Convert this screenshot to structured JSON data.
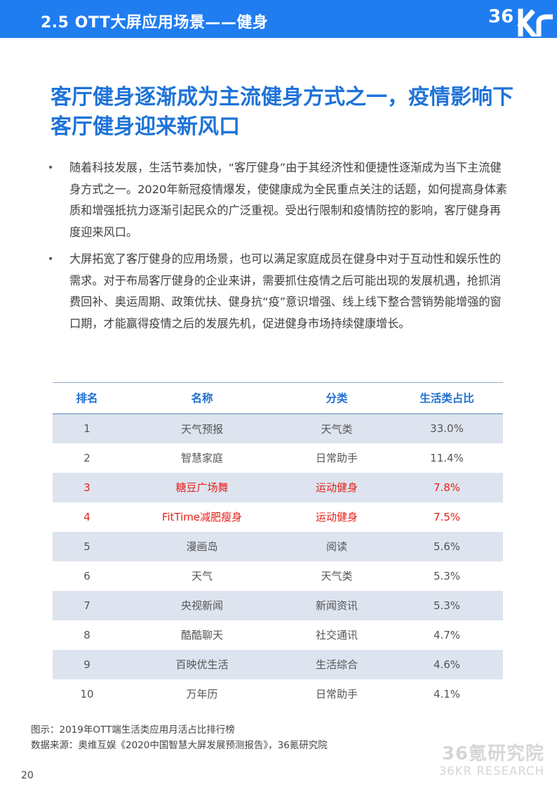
{
  "header": {
    "title": "2.5 OTT大屏应用场景——健身",
    "logo_text": "36Kr",
    "bar_color": "#1f7df0"
  },
  "headline": "客厅健身逐渐成为主流健身方式之一，疫情影响下客厅健身迎来新风口",
  "bullets": [
    "随着科技发展，生活节奏加快，“客厅健身”由于其经济性和便捷性逐渐成为当下主流健身方式之一。2020年新冠疫情爆发，使健康成为全民重点关注的话题，如何提高身体素质和增强抵抗力逐渐引起民众的广泛重视。受出行限制和疫情防控的影响，客厅健身再度迎来风口。",
    "大屏拓宽了客厅健身的应用场景，也可以满足家庭成员在健身中对于互动性和娱乐性的需求。对于布局客厅健身的企业来讲，需要抓住疫情之后可能出现的发展机遇，抢抓消费回补、奥运周期、政策优扶、健身抗“疫”意识增强、线上线下整合营销势能增强的窗口期，才能赢得疫情之后的发展先机，促进健身市场持续健康增长。"
  ],
  "bullet_marker": "•",
  "table": {
    "headers": [
      "排名",
      "名称",
      "分类",
      "生活类占比"
    ],
    "rows": [
      {
        "rank": "1",
        "name": "天气预报",
        "category": "天气类",
        "share": "33.0%"
      },
      {
        "rank": "2",
        "name": "智慧家庭",
        "category": "日常助手",
        "share": "11.4%"
      },
      {
        "rank": "3",
        "name": "糖豆广场舞",
        "category": "运动健身",
        "share": "7.8%"
      },
      {
        "rank": "4",
        "name": "FitTime减肥瘦身",
        "category": "运动健身",
        "share": "7.5%"
      },
      {
        "rank": "5",
        "name": "漫画岛",
        "category": "阅读",
        "share": "5.6%"
      },
      {
        "rank": "6",
        "name": "天气",
        "category": "天气类",
        "share": "5.3%"
      },
      {
        "rank": "7",
        "name": "央视新闻",
        "category": "新闻资讯",
        "share": "5.3%"
      },
      {
        "rank": "8",
        "name": "酷酷聊天",
        "category": "社交通讯",
        "share": "4.7%"
      },
      {
        "rank": "9",
        "name": "百映优生活",
        "category": "生活综合",
        "share": "4.6%"
      },
      {
        "rank": "10",
        "name": "万年历",
        "category": "日常助手",
        "share": "4.1%"
      }
    ],
    "highlight_color": "#e8201a",
    "header_color": "#1f6fd1"
  },
  "caption": {
    "figure": "图示：2019年OTT端生活类应用月活占比排行榜",
    "source": "数据来源：奥维互娱《2020中国智慧大屏发展预测报告》，36氪研究院"
  },
  "watermark": {
    "cn": "36氪研究院",
    "en": "36KR RESEARCH"
  },
  "page_number": "20"
}
